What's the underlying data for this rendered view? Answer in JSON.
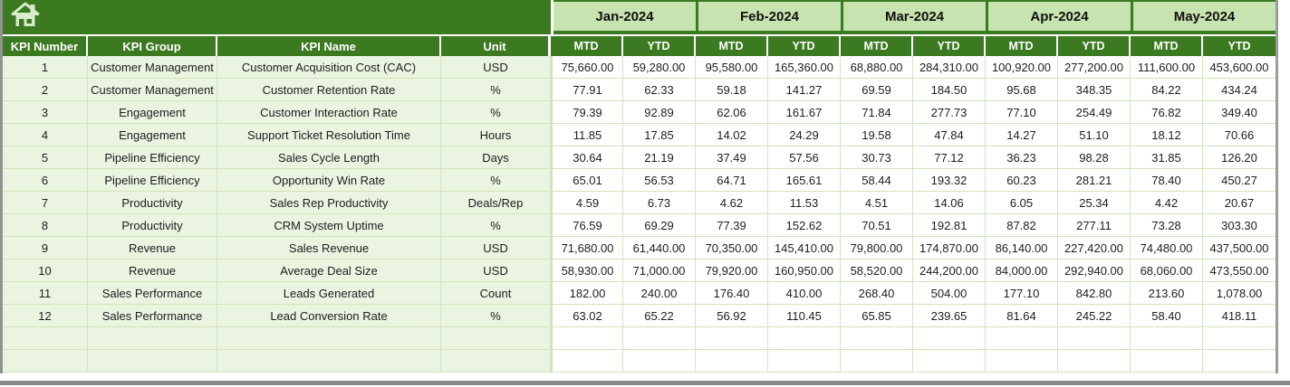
{
  "colors": {
    "header_green": "#3b7a20",
    "month_light_green": "#c7e3af",
    "row_tint_green": "#eaf4e1",
    "grid_line_green": "#cfe3bc",
    "header_text_white": "#ffffff",
    "body_text": "#1d1d1d",
    "window_edge_gray": "#8a8a8a"
  },
  "header": {
    "home_icon": "home-icon"
  },
  "table": {
    "left_headers": [
      "KPI Number",
      "KPI Group",
      "KPI Name",
      "Unit"
    ],
    "months": [
      "Jan-2024",
      "Feb-2024",
      "Mar-2024",
      "Apr-2024",
      "May-2024"
    ],
    "sub_headers": [
      "MTD",
      "YTD"
    ],
    "rows": [
      {
        "kpi_number": "1",
        "kpi_group": "Customer Management",
        "kpi_name": "Customer Acquisition Cost (CAC)",
        "unit": "USD",
        "values": [
          "75,660.00",
          "59,280.00",
          "95,580.00",
          "165,360.00",
          "68,880.00",
          "284,310.00",
          "100,920.00",
          "277,200.00",
          "111,600.00",
          "453,600.00"
        ]
      },
      {
        "kpi_number": "2",
        "kpi_group": "Customer Management",
        "kpi_name": "Customer Retention Rate",
        "unit": "%",
        "values": [
          "77.91",
          "62.33",
          "59.18",
          "141.27",
          "69.59",
          "184.50",
          "95.68",
          "348.35",
          "84.22",
          "434.24"
        ]
      },
      {
        "kpi_number": "3",
        "kpi_group": "Engagement",
        "kpi_name": "Customer Interaction Rate",
        "unit": "%",
        "values": [
          "79.39",
          "92.89",
          "62.06",
          "161.67",
          "71.84",
          "277.73",
          "77.10",
          "254.49",
          "76.82",
          "349.40"
        ]
      },
      {
        "kpi_number": "4",
        "kpi_group": "Engagement",
        "kpi_name": "Support Ticket Resolution Time",
        "unit": "Hours",
        "values": [
          "11.85",
          "17.85",
          "14.02",
          "24.29",
          "19.58",
          "47.84",
          "14.27",
          "51.10",
          "18.12",
          "70.66"
        ]
      },
      {
        "kpi_number": "5",
        "kpi_group": "Pipeline Efficiency",
        "kpi_name": "Sales Cycle Length",
        "unit": "Days",
        "values": [
          "30.64",
          "21.19",
          "37.49",
          "57.56",
          "30.73",
          "77.12",
          "36.23",
          "98.28",
          "31.85",
          "126.20"
        ]
      },
      {
        "kpi_number": "6",
        "kpi_group": "Pipeline Efficiency",
        "kpi_name": "Opportunity Win Rate",
        "unit": "%",
        "values": [
          "65.01",
          "56.53",
          "64.71",
          "165.61",
          "58.44",
          "193.32",
          "60.23",
          "281.21",
          "78.40",
          "450.27"
        ]
      },
      {
        "kpi_number": "7",
        "kpi_group": "Productivity",
        "kpi_name": "Sales Rep Productivity",
        "unit": "Deals/Rep",
        "values": [
          "4.59",
          "6.73",
          "4.62",
          "11.53",
          "4.51",
          "14.06",
          "6.05",
          "25.34",
          "4.42",
          "20.67"
        ]
      },
      {
        "kpi_number": "8",
        "kpi_group": "Productivity",
        "kpi_name": "CRM System Uptime",
        "unit": "%",
        "values": [
          "76.59",
          "69.29",
          "77.39",
          "152.62",
          "70.51",
          "192.81",
          "87.82",
          "277.11",
          "73.28",
          "303.30"
        ]
      },
      {
        "kpi_number": "9",
        "kpi_group": "Revenue",
        "kpi_name": "Sales Revenue",
        "unit": "USD",
        "values": [
          "71,680.00",
          "61,440.00",
          "70,350.00",
          "145,410.00",
          "79,800.00",
          "174,870.00",
          "86,140.00",
          "227,420.00",
          "74,480.00",
          "437,500.00"
        ]
      },
      {
        "kpi_number": "10",
        "kpi_group": "Revenue",
        "kpi_name": "Average Deal Size",
        "unit": "USD",
        "values": [
          "58,930.00",
          "71,000.00",
          "79,920.00",
          "160,950.00",
          "58,520.00",
          "244,200.00",
          "84,000.00",
          "292,940.00",
          "68,060.00",
          "473,550.00"
        ]
      },
      {
        "kpi_number": "11",
        "kpi_group": "Sales Performance",
        "kpi_name": "Leads Generated",
        "unit": "Count",
        "values": [
          "182.00",
          "240.00",
          "176.40",
          "410.00",
          "268.40",
          "504.00",
          "177.10",
          "842.80",
          "213.60",
          "1,078.00"
        ]
      },
      {
        "kpi_number": "12",
        "kpi_group": "Sales Performance",
        "kpi_name": "Lead Conversion Rate",
        "unit": "%",
        "values": [
          "63.02",
          "65.22",
          "56.92",
          "110.45",
          "65.85",
          "239.65",
          "81.64",
          "245.22",
          "58.40",
          "418.11"
        ]
      }
    ],
    "empty_row_count": 2
  }
}
